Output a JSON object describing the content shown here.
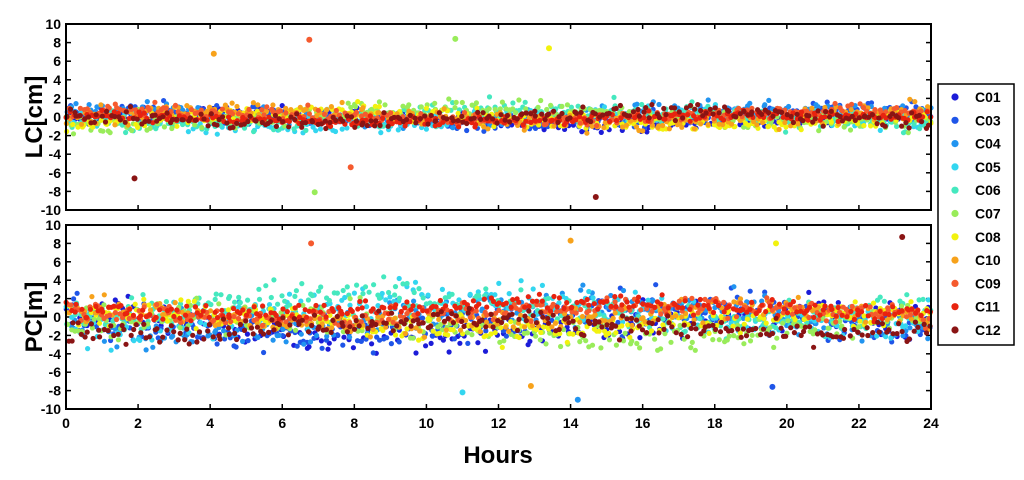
{
  "chart_data": {
    "type": "scatter",
    "x": {
      "label": "Hours",
      "range": [
        0,
        24
      ],
      "ticks": [
        "0",
        "2",
        "4",
        "6",
        "8",
        "10",
        "12",
        "14",
        "16",
        "18",
        "20",
        "22",
        "24"
      ]
    },
    "legend": {
      "placement": "right",
      "series": [
        {
          "name": "C01",
          "color": "#1c1cd8"
        },
        {
          "name": "C03",
          "color": "#1f55e8"
        },
        {
          "name": "C04",
          "color": "#2194f0"
        },
        {
          "name": "C05",
          "color": "#33d6f0"
        },
        {
          "name": "C06",
          "color": "#45e8bf"
        },
        {
          "name": "C07",
          "color": "#99ec5a"
        },
        {
          "name": "C08",
          "color": "#f2f20e"
        },
        {
          "name": "C10",
          "color": "#f7a21b"
        },
        {
          "name": "C09",
          "color": "#f55a2e"
        },
        {
          "name": "C11",
          "color": "#e8230f"
        },
        {
          "name": "C12",
          "color": "#8a1414"
        }
      ]
    },
    "panels": [
      {
        "ylabel": "LC[cm]",
        "ylim": [
          -10,
          10
        ],
        "yticks": [
          "10",
          "8",
          "6",
          "4",
          "2",
          "0",
          "-2",
          "-4",
          "-6",
          "-8",
          "-10"
        ],
        "grid": false,
        "series_spread": {
          "C01": 0.9,
          "C03": 1.0,
          "C04": 1.0,
          "C05": 1.1,
          "C06": 1.2,
          "C07": 1.2,
          "C08": 1.0,
          "C10": 1.1,
          "C09": 0.8,
          "C11": 0.6,
          "C12": 0.9
        },
        "notable_points": [
          {
            "series": "C09",
            "x": 6.75,
            "y": 8.3
          },
          {
            "series": "C07",
            "x": 10.8,
            "y": 8.4
          },
          {
            "series": "C08",
            "x": 13.4,
            "y": 7.4
          },
          {
            "series": "C10",
            "x": 4.1,
            "y": 6.8
          },
          {
            "series": "C07",
            "x": 6.9,
            "y": -8.1
          },
          {
            "series": "C12",
            "x": 14.7,
            "y": -8.6
          },
          {
            "series": "C12",
            "x": 1.9,
            "y": -6.6
          },
          {
            "series": "C09",
            "x": 7.9,
            "y": -5.4
          }
        ]
      },
      {
        "ylabel": "PC[m]",
        "ylim": [
          -10,
          10
        ],
        "yticks": [
          "10",
          "8",
          "6",
          "4",
          "2",
          "0",
          "-2",
          "-4",
          "-6",
          "-8",
          "-10"
        ],
        "grid": false,
        "series_spread": {
          "C01": 2.2,
          "C03": 2.4,
          "C04": 2.3,
          "C05": 2.4,
          "C06": 2.1,
          "C07": 1.9,
          "C08": 1.6,
          "C10": 1.4,
          "C09": 1.2,
          "C11": 1.0,
          "C12": 1.3
        },
        "notable_points": [
          {
            "series": "C12",
            "x": 23.2,
            "y": 8.7
          },
          {
            "series": "C10",
            "x": 14.0,
            "y": 8.3
          },
          {
            "series": "C09",
            "x": 6.8,
            "y": 8.0
          },
          {
            "series": "C08",
            "x": 19.7,
            "y": 8.0
          },
          {
            "series": "C05",
            "x": 11.0,
            "y": -8.2
          },
          {
            "series": "C03",
            "x": 19.6,
            "y": -7.6
          },
          {
            "series": "C04",
            "x": 14.2,
            "y": -9.0
          },
          {
            "series": "C10",
            "x": 12.9,
            "y": -7.5
          }
        ]
      }
    ]
  }
}
